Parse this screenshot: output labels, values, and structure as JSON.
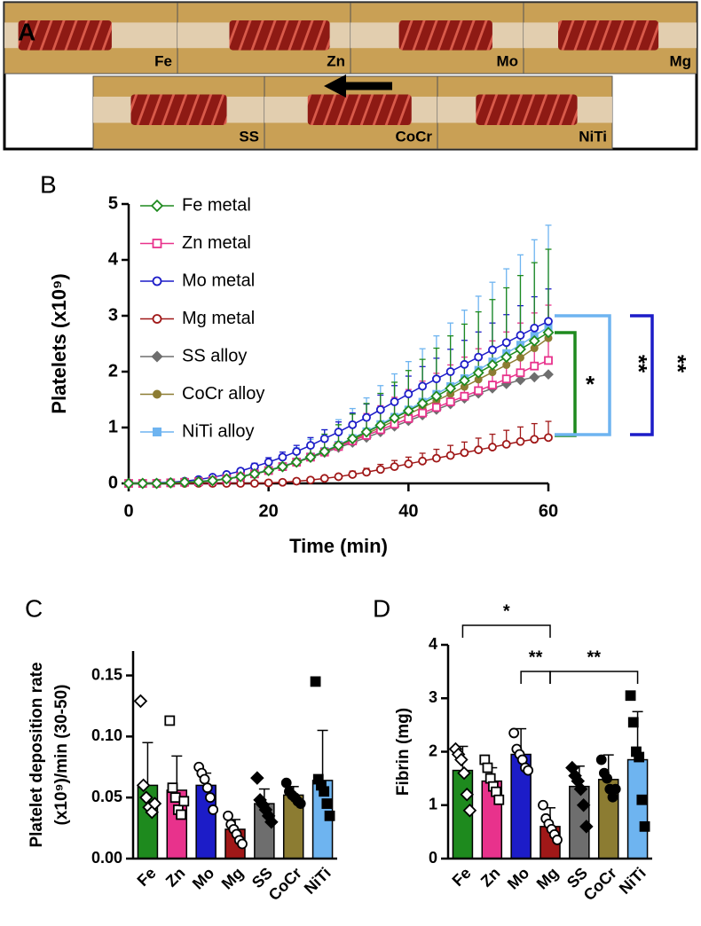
{
  "panel_a": {
    "panel_label": "A",
    "photos": [
      "Fe",
      "Zn",
      "Mo",
      "Mg",
      "SS",
      "CoCr",
      "NiTi"
    ]
  },
  "chart_data": [
    {
      "type": "line",
      "panel_label": "B",
      "x_label": "Time (min)",
      "y_label": "Platelets (x10⁹)",
      "xlim": [
        0,
        60
      ],
      "xticks": [
        0,
        20,
        40,
        60
      ],
      "ylim": [
        0,
        5
      ],
      "yticks": [
        0,
        1,
        2,
        3,
        4,
        5
      ],
      "x": [
        0,
        2,
        4,
        6,
        8,
        10,
        12,
        14,
        16,
        18,
        20,
        22,
        24,
        26,
        28,
        30,
        32,
        34,
        36,
        38,
        40,
        42,
        44,
        46,
        48,
        50,
        52,
        54,
        56,
        58,
        60
      ],
      "series": [
        {
          "name": "Fe metal",
          "color": "#1e8a1e",
          "marker": "diamond-open",
          "values": [
            0,
            0,
            0,
            0.01,
            0.02,
            0.03,
            0.05,
            0.08,
            0.12,
            0.17,
            0.23,
            0.3,
            0.38,
            0.47,
            0.57,
            0.68,
            0.8,
            0.92,
            1.04,
            1.17,
            1.3,
            1.43,
            1.56,
            1.7,
            1.84,
            1.98,
            2.12,
            2.26,
            2.4,
            2.55,
            2.7
          ],
          "errors": [
            0,
            0,
            0,
            0.01,
            0.01,
            0.02,
            0.03,
            0.04,
            0.07,
            0.09,
            0.13,
            0.17,
            0.21,
            0.26,
            0.31,
            0.37,
            0.44,
            0.51,
            0.57,
            0.64,
            0.72,
            0.79,
            0.86,
            0.94,
            1.01,
            1.09,
            1.17,
            1.24,
            1.32,
            1.4,
            1.49
          ]
        },
        {
          "name": "Zn metal",
          "color": "#e8328c",
          "marker": "square-open",
          "values": [
            0,
            0,
            0,
            0.01,
            0.02,
            0.03,
            0.05,
            0.08,
            0.12,
            0.17,
            0.23,
            0.3,
            0.38,
            0.47,
            0.56,
            0.66,
            0.76,
            0.86,
            0.96,
            1.06,
            1.16,
            1.26,
            1.36,
            1.46,
            1.56,
            1.66,
            1.76,
            1.87,
            1.98,
            2.1,
            2.2
          ],
          "errors": [
            0,
            0,
            0,
            0,
            0.01,
            0.01,
            0.02,
            0.04,
            0.05,
            0.08,
            0.1,
            0.14,
            0.17,
            0.21,
            0.25,
            0.3,
            0.34,
            0.39,
            0.43,
            0.48,
            0.52,
            0.57,
            0.61,
            0.66,
            0.7,
            0.75,
            0.79,
            0.84,
            0.89,
            0.95,
            0.99
          ]
        },
        {
          "name": "Mo metal",
          "color": "#1c1cc8",
          "marker": "circle-open",
          "values": [
            0,
            0,
            0.01,
            0.02,
            0.04,
            0.07,
            0.11,
            0.16,
            0.22,
            0.3,
            0.38,
            0.47,
            0.57,
            0.68,
            0.8,
            0.92,
            1.05,
            1.18,
            1.32,
            1.46,
            1.6,
            1.74,
            1.87,
            2.0,
            2.13,
            2.26,
            2.39,
            2.52,
            2.65,
            2.78,
            2.9
          ],
          "errors": [
            0,
            0,
            0,
            0,
            0.01,
            0.01,
            0.02,
            0.03,
            0.04,
            0.06,
            0.08,
            0.09,
            0.11,
            0.14,
            0.16,
            0.18,
            0.21,
            0.24,
            0.26,
            0.29,
            0.32,
            0.35,
            0.37,
            0.4,
            0.43,
            0.45,
            0.48,
            0.5,
            0.53,
            0.56,
            0.58
          ]
        },
        {
          "name": "Mg metal",
          "color": "#a01818",
          "marker": "circle-open",
          "values": [
            0,
            0,
            0,
            0,
            0,
            0,
            0,
            0,
            0,
            0,
            0.01,
            0.02,
            0.04,
            0.06,
            0.09,
            0.12,
            0.16,
            0.2,
            0.25,
            0.3,
            0.35,
            0.4,
            0.45,
            0.5,
            0.55,
            0.6,
            0.65,
            0.7,
            0.75,
            0.79,
            0.82
          ],
          "errors": [
            0,
            0,
            0,
            0,
            0,
            0,
            0,
            0,
            0,
            0,
            0,
            0.01,
            0.01,
            0.02,
            0.03,
            0.04,
            0.06,
            0.07,
            0.09,
            0.11,
            0.12,
            0.14,
            0.16,
            0.18,
            0.19,
            0.21,
            0.23,
            0.25,
            0.26,
            0.28,
            0.29
          ]
        },
        {
          "name": "SS alloy",
          "color": "#6e6e6e",
          "marker": "diamond",
          "values": [
            0,
            0,
            0,
            0.01,
            0.02,
            0.03,
            0.05,
            0.08,
            0.12,
            0.17,
            0.23,
            0.3,
            0.38,
            0.46,
            0.55,
            0.64,
            0.73,
            0.82,
            0.92,
            1.02,
            1.12,
            1.22,
            1.32,
            1.42,
            1.52,
            1.61,
            1.7,
            1.78,
            1.85,
            1.9,
            1.95
          ]
        },
        {
          "name": "CoCr alloy",
          "color": "#8c7c32",
          "marker": "circle",
          "values": [
            0,
            0,
            0,
            0.01,
            0.02,
            0.03,
            0.05,
            0.08,
            0.12,
            0.17,
            0.23,
            0.3,
            0.38,
            0.47,
            0.57,
            0.67,
            0.78,
            0.89,
            1.0,
            1.12,
            1.24,
            1.36,
            1.48,
            1.6,
            1.73,
            1.86,
            1.99,
            2.12,
            2.25,
            2.42,
            2.6
          ]
        },
        {
          "name": "NiTi alloy",
          "color": "#6eb4f0",
          "marker": "square",
          "values": [
            0,
            0,
            0,
            0.01,
            0.02,
            0.04,
            0.06,
            0.09,
            0.13,
            0.18,
            0.24,
            0.31,
            0.39,
            0.48,
            0.58,
            0.69,
            0.81,
            0.93,
            1.06,
            1.19,
            1.32,
            1.46,
            1.6,
            1.74,
            1.88,
            2.03,
            2.18,
            2.33,
            2.48,
            2.64,
            2.8
          ],
          "errors": [
            0,
            0,
            0,
            0.01,
            0.01,
            0.03,
            0.04,
            0.06,
            0.08,
            0.12,
            0.16,
            0.2,
            0.25,
            0.31,
            0.38,
            0.45,
            0.53,
            0.6,
            0.69,
            0.77,
            0.86,
            0.95,
            1.04,
            1.13,
            1.22,
            1.32,
            1.42,
            1.51,
            1.61,
            1.72,
            1.82
          ]
        }
      ],
      "annotations": [
        {
          "text": "*",
          "color": "#1e8a1e"
        },
        {
          "text": "**",
          "color": "#6eb4f0"
        },
        {
          "text": "**",
          "color": "#1c1cc8"
        }
      ]
    },
    {
      "type": "bar",
      "panel_label": "C",
      "y_label": [
        "Platelet deposition rate",
        "(x10⁹)/min (30-50)"
      ],
      "categories": [
        "Fe",
        "Zn",
        "Mo",
        "Mg",
        "SS",
        "CoCr",
        "NiTi"
      ],
      "colors": [
        "#1e8a1e",
        "#e8328c",
        "#1c1cc8",
        "#a01818",
        "#6e6e6e",
        "#8c7c32",
        "#6eb4f0"
      ],
      "markers": [
        "diamond-open",
        "square-open",
        "circle-open",
        "circle-open",
        "diamond",
        "circle",
        "square"
      ],
      "point_color": "#000000",
      "ylim": [
        0,
        0.17
      ],
      "yticks": [
        {
          "value": 0,
          "label": "0.00"
        },
        {
          "value": 0.05,
          "label": "0.05"
        },
        {
          "value": 0.1,
          "label": "0.10"
        },
        {
          "value": 0.15,
          "label": "0.15"
        }
      ],
      "values": [
        0.06,
        0.056,
        0.06,
        0.024,
        0.045,
        0.052,
        0.064
      ],
      "errors": [
        0.035,
        0.028,
        0.01,
        0.008,
        0.012,
        0.007,
        0.041
      ],
      "points": [
        [
          0.129,
          0.06,
          0.05,
          0.042,
          0.038,
          0.045
        ],
        [
          0.113,
          0.058,
          0.05,
          0.04,
          0.036,
          0.047
        ],
        [
          0.075,
          0.07,
          0.065,
          0.058,
          0.05,
          0.04
        ],
        [
          0.035,
          0.028,
          0.024,
          0.02,
          0.015,
          0.012
        ],
        [
          0.066,
          0.048,
          0.044,
          0.04,
          0.035,
          0.03
        ],
        [
          0.062,
          0.055,
          0.052,
          0.05,
          0.047,
          0.045
        ],
        [
          0.145,
          0.065,
          0.06,
          0.055,
          0.045,
          0.035
        ]
      ]
    },
    {
      "type": "bar",
      "panel_label": "D",
      "y_label": [
        "Fibrin (mg)"
      ],
      "categories": [
        "Fe",
        "Zn",
        "Mo",
        "Mg",
        "SS",
        "CoCr",
        "NiTi"
      ],
      "colors": [
        "#1e8a1e",
        "#e8328c",
        "#1c1cc8",
        "#a01818",
        "#6e6e6e",
        "#8c7c32",
        "#6eb4f0"
      ],
      "markers": [
        "diamond-open",
        "square-open",
        "circle-open",
        "circle-open",
        "diamond",
        "circle",
        "square"
      ],
      "point_color": "#000000",
      "ylim": [
        0,
        4
      ],
      "yticks": [
        0,
        1,
        2,
        3,
        4
      ],
      "values": [
        1.65,
        1.45,
        1.95,
        0.6,
        1.35,
        1.48,
        1.85
      ],
      "errors": [
        0.45,
        0.25,
        0.48,
        0.35,
        0.38,
        0.46,
        0.9
      ],
      "points": [
        [
          2.05,
          1.95,
          1.85,
          1.6,
          1.2,
          0.9
        ],
        [
          1.85,
          1.7,
          1.5,
          1.35,
          1.25,
          1.1
        ],
        [
          2.35,
          2.05,
          1.95,
          1.85,
          1.7,
          1.65
        ],
        [
          1.0,
          0.75,
          0.65,
          0.55,
          0.45,
          0.35
        ],
        [
          1.7,
          1.55,
          1.45,
          1.3,
          1.0,
          0.6
        ],
        [
          1.85,
          1.6,
          1.5,
          1.3,
          1.15,
          1.3
        ],
        [
          3.05,
          2.55,
          2.0,
          1.9,
          1.1,
          0.6
        ]
      ],
      "annotations": [
        "*",
        "**",
        "**"
      ]
    }
  ]
}
